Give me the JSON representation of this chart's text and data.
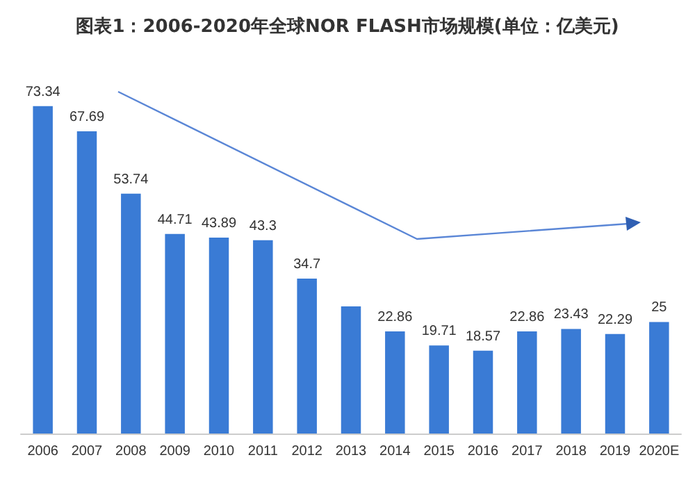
{
  "chart_data": {
    "type": "bar",
    "title": "图表1：2006-2020年全球NOR FLASH市场规模(单位：亿美元)",
    "categories": [
      "2006",
      "2007",
      "2008",
      "2009",
      "2010",
      "2011",
      "2012",
      "2013",
      "2014",
      "2015",
      "2016",
      "2017",
      "2018",
      "2019",
      "2020E"
    ],
    "values": [
      73.34,
      67.69,
      53.74,
      44.71,
      43.89,
      43.3,
      34.7,
      28.5,
      22.86,
      19.71,
      18.57,
      22.86,
      23.43,
      22.29,
      25
    ],
    "value_labels": [
      "73.34",
      "67.69",
      "53.74",
      "44.71",
      "43.89",
      "43.3",
      "34.7",
      null,
      "22.86",
      "19.71",
      "18.57",
      "22.86",
      "23.43",
      "22.29",
      "25"
    ],
    "color": "#3a7bd5",
    "tick_labels": "x"
  }
}
